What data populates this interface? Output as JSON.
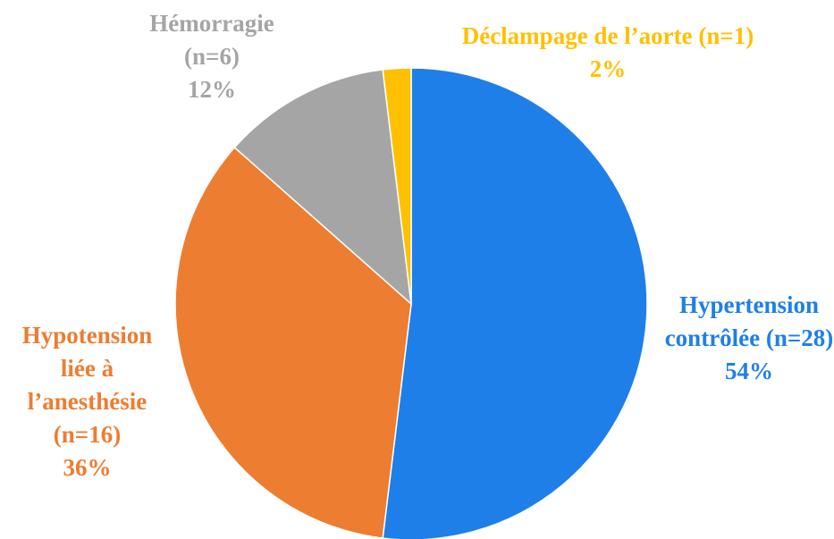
{
  "chart_data": {
    "type": "pie",
    "categories": [
      "Hypertension contrôlée (n=28)",
      "Hypotension liée à l’anesthésie (n=16)",
      "Hémorragie (n=6)",
      "Déclampage de l’aorte (n=1)"
    ],
    "values": [
      54,
      36,
      12,
      2
    ],
    "value_labels": [
      "54%",
      "36%",
      "12%",
      "2%"
    ],
    "colors": [
      "#1f7fe8",
      "#ed7d31",
      "#a5a5a5",
      "#ffc000"
    ]
  }
}
